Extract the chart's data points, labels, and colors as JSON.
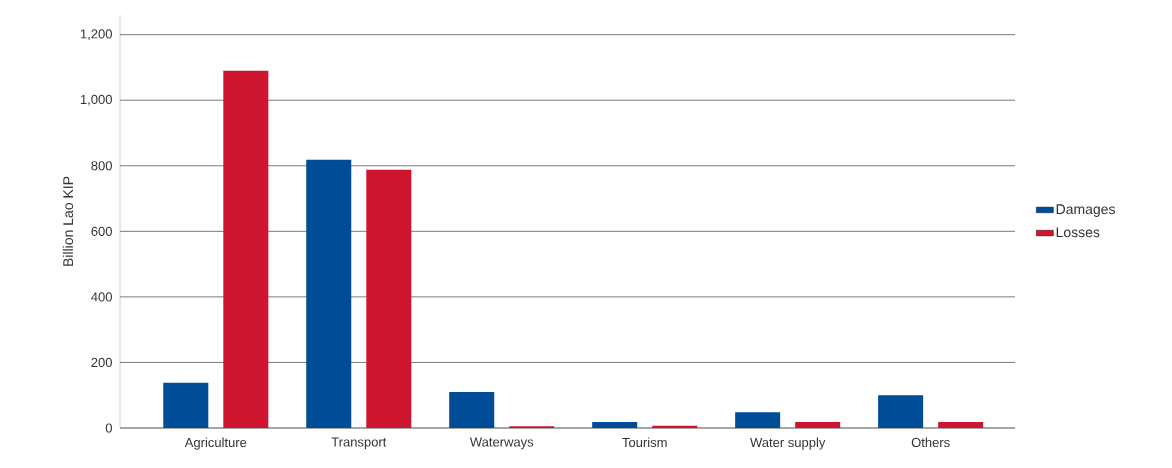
{
  "chart_data": {
    "type": "bar",
    "ylabel": "Billion Lao KIP",
    "categories": [
      "Agriculture",
      "Transport",
      "Waterways",
      "Tourism",
      "Water supply",
      "Others"
    ],
    "series": [
      {
        "name": "Damages",
        "color": "#004c97",
        "values": [
          138,
          818,
          110,
          18,
          48,
          100
        ]
      },
      {
        "name": "Losses",
        "color": "#cd1530",
        "values": [
          1090,
          788,
          5,
          7,
          18,
          18
        ]
      }
    ],
    "ylim": [
      0,
      1260
    ],
    "yticks": [
      0,
      {
        "value": 200,
        "label": "200"
      },
      {
        "value": 400,
        "label": "400"
      },
      {
        "value": 600,
        "label": "600"
      },
      {
        "value": 800,
        "label": "800"
      },
      {
        "value": 1000,
        "label": "1,000"
      },
      {
        "value": 1200,
        "label": "1,200"
      }
    ],
    "grid": "y",
    "legend": "right"
  }
}
